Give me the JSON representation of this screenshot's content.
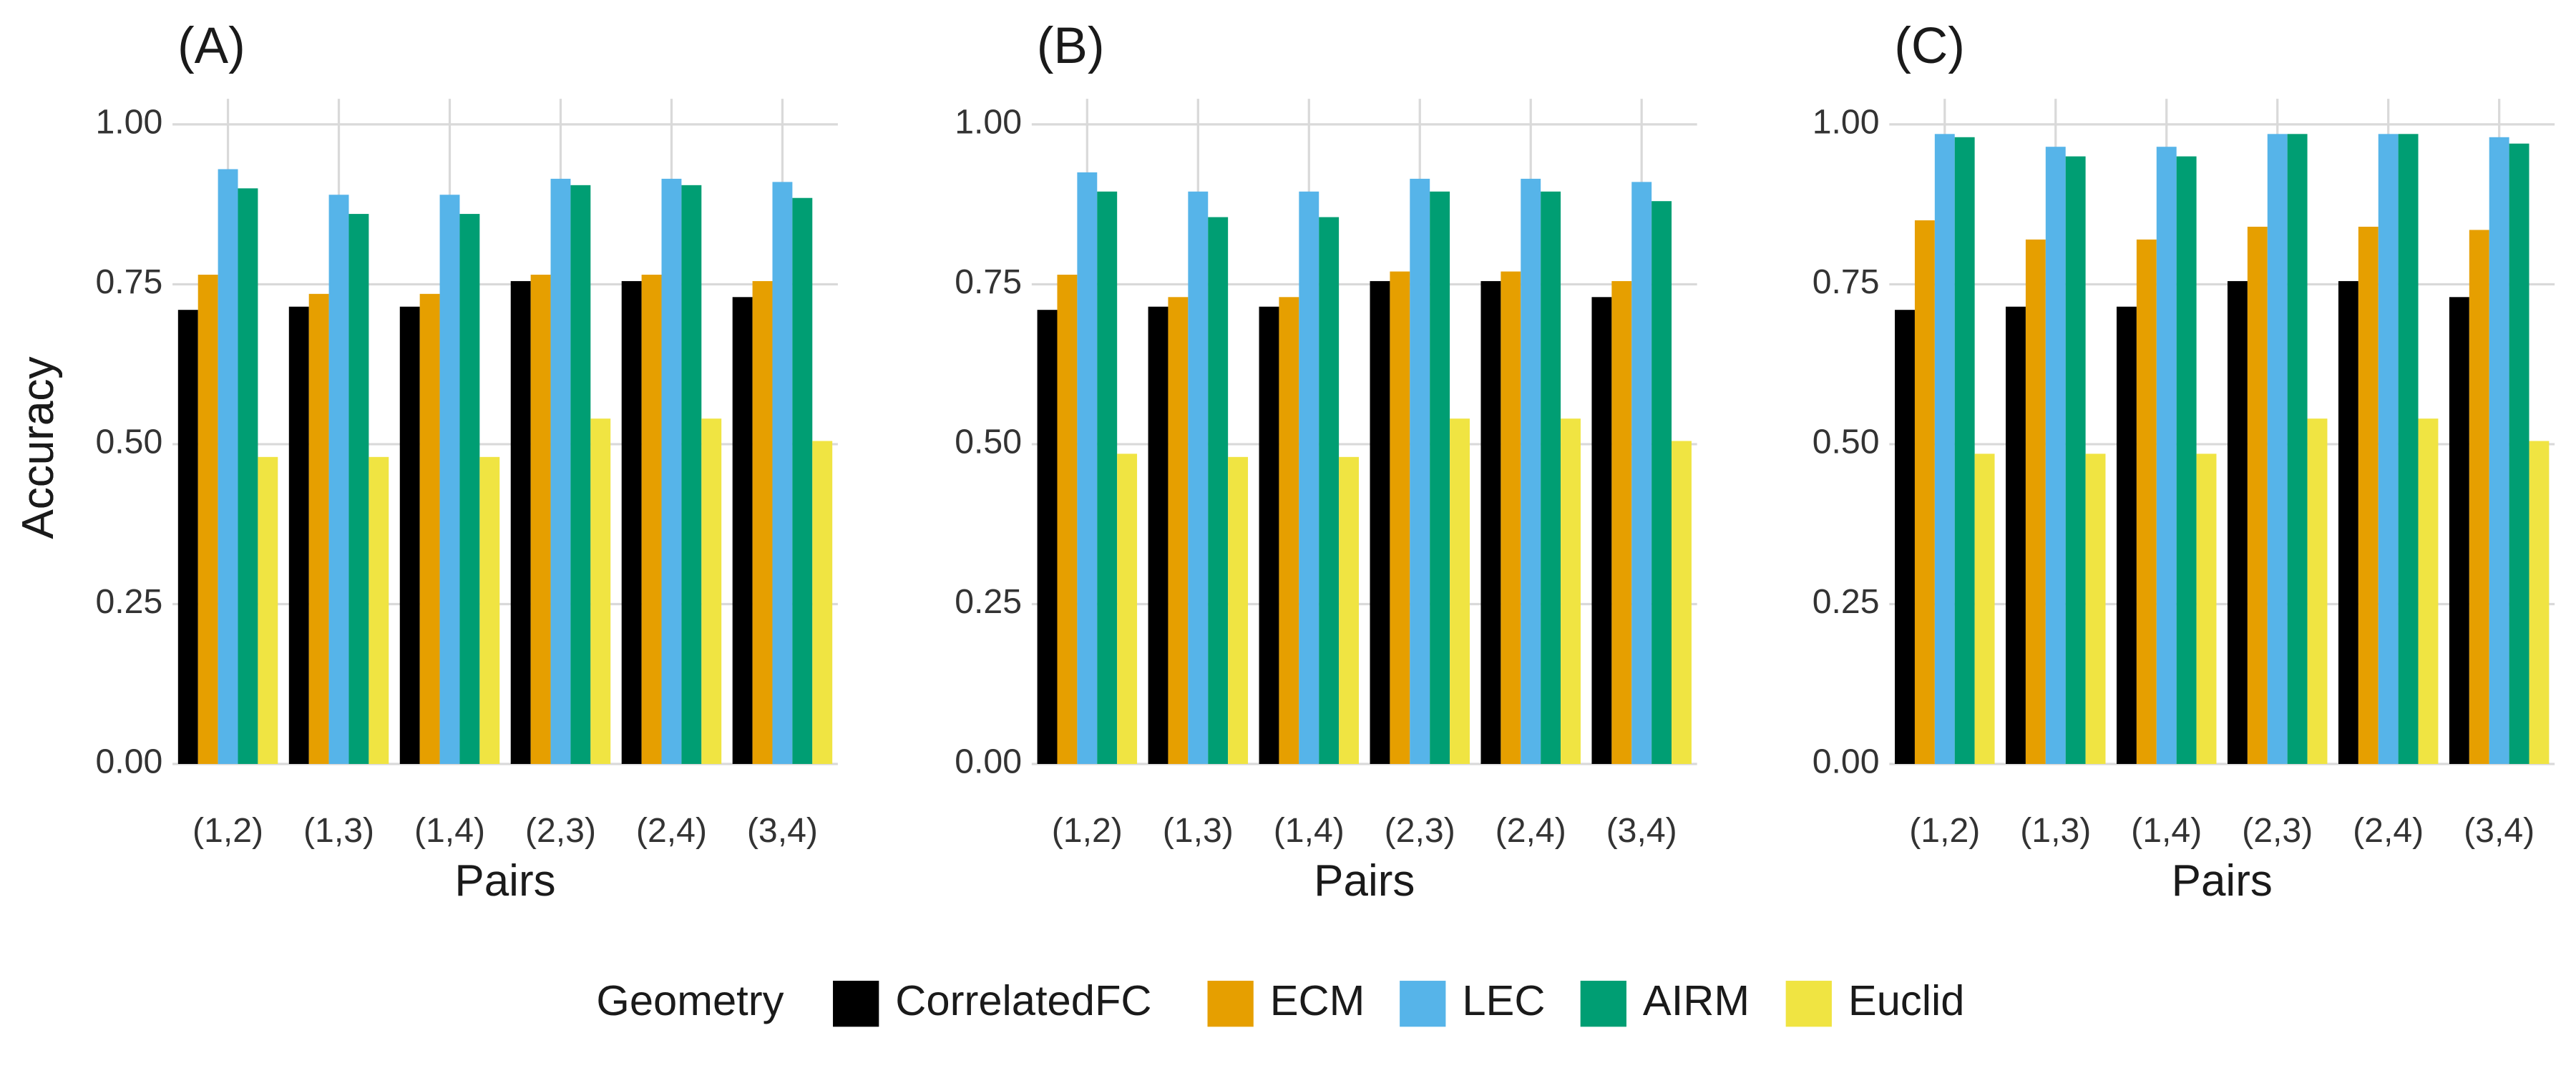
{
  "legend": {
    "title": "Geometry",
    "items": [
      {
        "name": "CorrelatedFC",
        "color": "#000000"
      },
      {
        "name": "ECM",
        "color": "#e69f00"
      },
      {
        "name": "LEC",
        "color": "#56b4e9"
      },
      {
        "name": "AIRM",
        "color": "#009e73"
      },
      {
        "name": "Euclid",
        "color": "#f0e442"
      }
    ]
  },
  "chart_data": [
    {
      "type": "bar",
      "title": "(A)",
      "x_label": "Pairs",
      "y_label": "Accuracy",
      "categories": [
        "(1,2)",
        "(1,3)",
        "(1,4)",
        "(2,3)",
        "(2,4)",
        "(3,4)"
      ],
      "ylim": [
        0,
        1.04
      ],
      "yticks": [
        {
          "value": 0,
          "label": "0.00"
        },
        {
          "value": 0.25,
          "label": "0.25"
        },
        {
          "value": 0.5,
          "label": "0.50"
        },
        {
          "value": 0.75,
          "label": "0.75"
        },
        {
          "value": 1,
          "label": "1.00"
        }
      ],
      "grid": true,
      "series": [
        {
          "values": [
            0.71,
            0.715,
            0.715,
            0.755,
            0.755,
            0.73
          ]
        },
        {
          "values": [
            0.765,
            0.735,
            0.735,
            0.765,
            0.765,
            0.755
          ]
        },
        {
          "values": [
            0.93,
            0.89,
            0.89,
            0.915,
            0.915,
            0.91
          ]
        },
        {
          "values": [
            0.9,
            0.86,
            0.86,
            0.905,
            0.905,
            0.885
          ]
        },
        {
          "values": [
            0.48,
            0.48,
            0.48,
            0.54,
            0.54,
            0.505
          ]
        }
      ]
    },
    {
      "type": "bar",
      "title": "(B)",
      "x_label": "Pairs",
      "y_label": "Accuracy",
      "categories": [
        "(1,2)",
        "(1,3)",
        "(1,4)",
        "(2,3)",
        "(2,4)",
        "(3,4)"
      ],
      "ylim": [
        0,
        1.04
      ],
      "yticks": [
        {
          "value": 0,
          "label": "0.00"
        },
        {
          "value": 0.25,
          "label": "0.25"
        },
        {
          "value": 0.5,
          "label": "0.50"
        },
        {
          "value": 0.75,
          "label": "0.75"
        },
        {
          "value": 1,
          "label": "1.00"
        }
      ],
      "grid": true,
      "series": [
        {
          "values": [
            0.71,
            0.715,
            0.715,
            0.755,
            0.755,
            0.73
          ]
        },
        {
          "values": [
            0.765,
            0.73,
            0.73,
            0.77,
            0.77,
            0.755
          ]
        },
        {
          "values": [
            0.925,
            0.895,
            0.895,
            0.915,
            0.915,
            0.91
          ]
        },
        {
          "values": [
            0.895,
            0.855,
            0.855,
            0.895,
            0.895,
            0.88
          ]
        },
        {
          "values": [
            0.485,
            0.48,
            0.48,
            0.54,
            0.54,
            0.505
          ]
        }
      ]
    },
    {
      "type": "bar",
      "title": "(C)",
      "x_label": "Pairs",
      "y_label": "Accuracy",
      "categories": [
        "(1,2)",
        "(1,3)",
        "(1,4)",
        "(2,3)",
        "(2,4)",
        "(3,4)"
      ],
      "ylim": [
        0,
        1.04
      ],
      "yticks": [
        {
          "value": 0,
          "label": "0.00"
        },
        {
          "value": 0.25,
          "label": "0.25"
        },
        {
          "value": 0.5,
          "label": "0.50"
        },
        {
          "value": 0.75,
          "label": "0.75"
        },
        {
          "value": 1,
          "label": "1.00"
        }
      ],
      "grid": true,
      "series": [
        {
          "values": [
            0.71,
            0.715,
            0.715,
            0.755,
            0.755,
            0.73
          ]
        },
        {
          "values": [
            0.85,
            0.82,
            0.82,
            0.84,
            0.84,
            0.835
          ]
        },
        {
          "values": [
            0.985,
            0.965,
            0.965,
            0.985,
            0.985,
            0.98
          ]
        },
        {
          "values": [
            0.98,
            0.95,
            0.95,
            0.985,
            0.985,
            0.97
          ]
        },
        {
          "values": [
            0.485,
            0.485,
            0.485,
            0.54,
            0.54,
            0.505
          ]
        }
      ]
    }
  ]
}
